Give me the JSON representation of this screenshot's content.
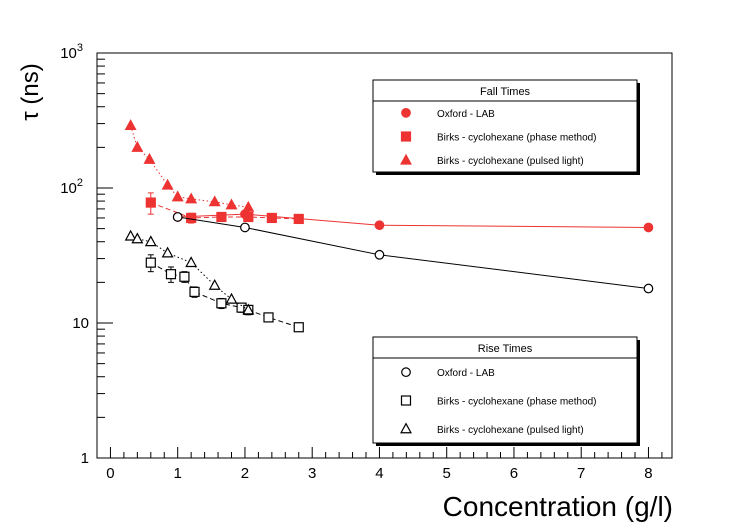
{
  "chart_data": {
    "type": "scatter",
    "ylog": true,
    "xlabel": "Concentration (g/l)",
    "ylabel": "τ (ns)",
    "xlim": [
      -0.2,
      8.35
    ],
    "ylim": [
      1,
      1000
    ],
    "x_ticks": [
      "0",
      "1",
      "2",
      "3",
      "4",
      "5",
      "6",
      "7",
      "8"
    ],
    "y_ticks": [
      {
        "value": 1,
        "label": "1",
        "sup": ""
      },
      {
        "value": 10,
        "label": "10",
        "sup": ""
      },
      {
        "value": 100,
        "label": "10",
        "sup": "2"
      },
      {
        "value": 1000,
        "label": "10",
        "sup": "3"
      }
    ],
    "colors": {
      "fall": "#ee3333",
      "rise": "#000000"
    },
    "legends": [
      {
        "title": "Fall Times",
        "entries": [
          {
            "label": "Oxford - LAB",
            "marker": "circle",
            "filled": true,
            "color": "#ee3333"
          },
          {
            "label": "Birks - cyclohexane (phase method)",
            "marker": "square",
            "filled": true,
            "color": "#ee3333"
          },
          {
            "label": "Birks - cyclohexane (pulsed light)",
            "marker": "triangle",
            "filled": true,
            "color": "#ee3333"
          }
        ]
      },
      {
        "title": "Rise Times",
        "entries": [
          {
            "label": "Oxford - LAB",
            "marker": "circle",
            "filled": false,
            "color": "#000000"
          },
          {
            "label": "Birks - cyclohexane (phase method)",
            "marker": "square",
            "filled": false,
            "color": "#000000"
          },
          {
            "label": "Birks - cyclohexane (pulsed light)",
            "marker": "triangle",
            "filled": false,
            "color": "#000000"
          }
        ]
      }
    ],
    "series": [
      {
        "name": "Fall Times - Oxford - LAB",
        "marker": "circle",
        "filled": true,
        "color": "#ee3333",
        "line": "solid",
        "x": [
          1,
          2,
          4,
          8
        ],
        "y": [
          61,
          64,
          53,
          51
        ]
      },
      {
        "name": "Fall Times - Birks - cyclohexane (phase method)",
        "marker": "square",
        "filled": true,
        "color": "#ee3333",
        "line": "dashed",
        "x": [
          0.6,
          1.2,
          1.65,
          2.05,
          2.4,
          2.8
        ],
        "y": [
          78,
          60,
          61,
          61,
          60,
          59
        ],
        "yerr": [
          14,
          5,
          4,
          4,
          3,
          3
        ]
      },
      {
        "name": "Fall Times - Birks - cyclohexane (pulsed light)",
        "marker": "triangle",
        "filled": true,
        "color": "#ee3333",
        "line": "dotted",
        "x": [
          0.3,
          0.4,
          0.58,
          0.85,
          1.0,
          1.2,
          1.55,
          1.8,
          2.05
        ],
        "y": [
          290,
          200,
          163,
          105,
          86,
          83,
          79,
          75,
          72
        ]
      },
      {
        "name": "Rise Times - Oxford - LAB",
        "marker": "circle",
        "filled": false,
        "color": "#000000",
        "line": "solid",
        "x": [
          1,
          2,
          4,
          8
        ],
        "y": [
          61,
          51,
          32,
          18
        ]
      },
      {
        "name": "Rise Times - Birks - cyclohexane (phase method)",
        "marker": "square",
        "filled": false,
        "color": "#000000",
        "line": "dashed",
        "x": [
          0.6,
          0.9,
          1.1,
          1.25,
          1.65,
          1.95,
          2.05,
          2.35,
          2.8
        ],
        "y": [
          28,
          23,
          22,
          17,
          14,
          13,
          12.5,
          11,
          9.3
        ],
        "yerr": [
          4,
          3,
          2,
          1.5,
          1.2,
          1,
          1,
          0.8,
          0.6
        ]
      },
      {
        "name": "Rise Times - Birks - cyclohexane (pulsed light)",
        "marker": "triangle",
        "filled": false,
        "color": "#000000",
        "line": "dotted",
        "x": [
          0.3,
          0.4,
          0.6,
          0.85,
          1.2,
          1.55,
          1.8,
          2.05
        ],
        "y": [
          44,
          42,
          40,
          33,
          28,
          19,
          15,
          12.5
        ]
      }
    ]
  }
}
